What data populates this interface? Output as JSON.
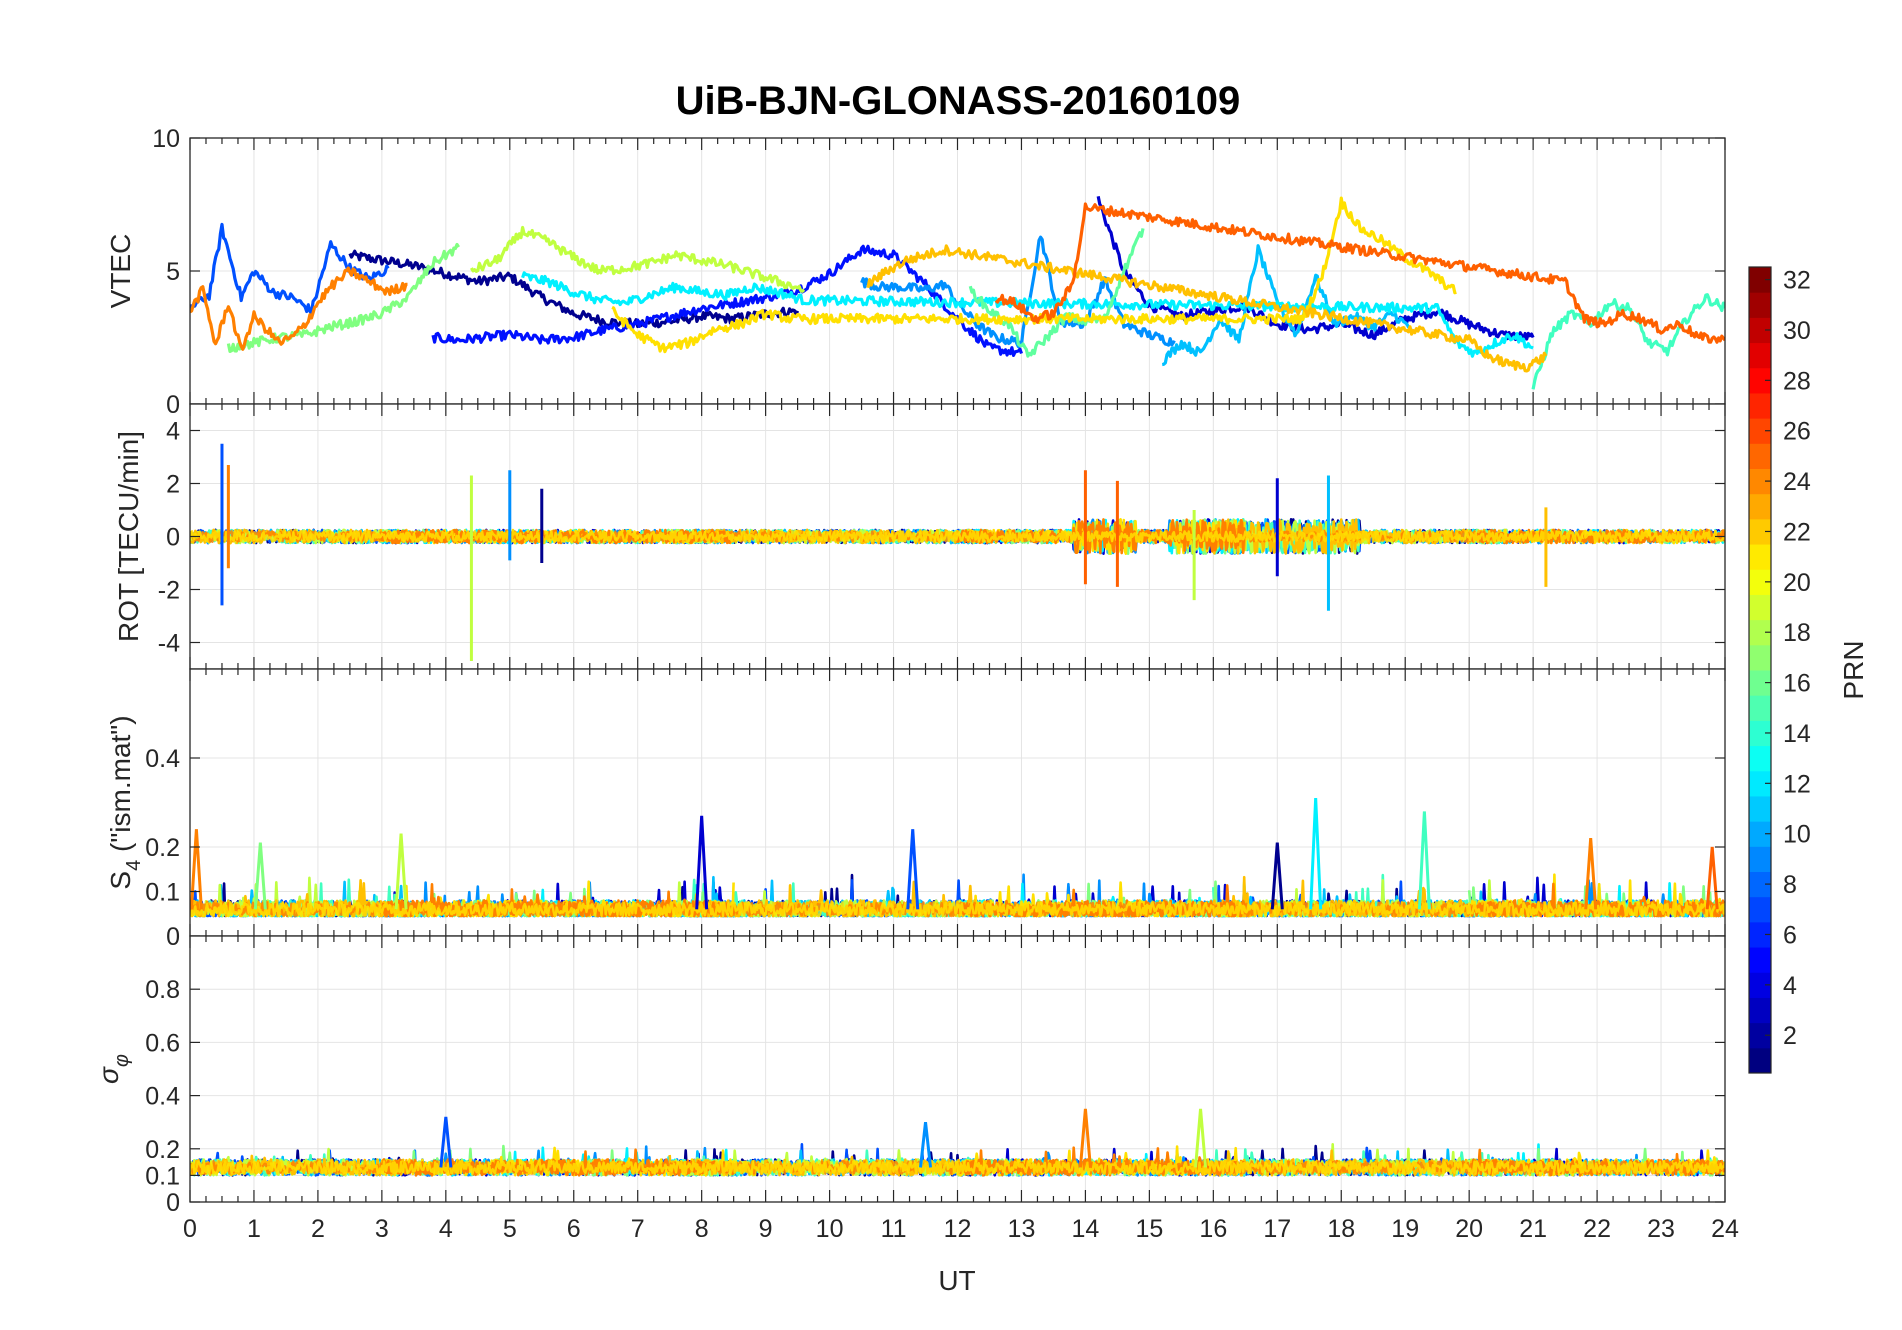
{
  "chart_data": {
    "title": "UiB-BJN-GLONASS-20160109",
    "type": "line",
    "xlabel": "UT",
    "xlim": [
      0,
      24
    ],
    "xticks": [
      0,
      1,
      2,
      3,
      4,
      5,
      6,
      7,
      8,
      9,
      10,
      11,
      12,
      13,
      14,
      15,
      16,
      17,
      18,
      19,
      20,
      21,
      22,
      23,
      24
    ],
    "colorbar": {
      "label": "PRN",
      "range": [
        1,
        32
      ],
      "ticks": [
        2,
        4,
        6,
        8,
        10,
        12,
        14,
        16,
        18,
        20,
        22,
        24,
        26,
        28,
        30,
        32
      ],
      "colormap": "jet"
    },
    "panels": [
      {
        "id": "vtec",
        "ylabel": "VTEC",
        "ylim": [
          0,
          10
        ],
        "yticks": [
          0,
          5,
          10
        ],
        "noise": 0.35,
        "base": 3.5,
        "series": [
          {
            "prn": 1,
            "color": "#00008f",
            "t": [
              2.5,
              3,
              3.5,
              4,
              4.5,
              5,
              5.5,
              6,
              6.5,
              7,
              7.5,
              8,
              8.5,
              9,
              9.5
            ],
            "v": [
              5.6,
              5.4,
              5.2,
              4.9,
              4.6,
              4.8,
              4.0,
              3.4,
              3.1,
              3.0,
              3.1,
              3.3,
              3.2,
              3.4,
              3.5
            ]
          },
          {
            "prn": 3,
            "color": "#0000cf",
            "t": [
              14.2,
              14.6,
              15,
              15.5,
              16,
              16.5,
              17,
              17.5,
              18,
              18.5,
              19,
              19.5,
              20,
              20.5,
              21
            ],
            "v": [
              7.7,
              5.0,
              3.7,
              3.3,
              3.5,
              3.7,
              3.0,
              2.8,
              3.0,
              2.6,
              3.2,
              3.5,
              3.0,
              2.6,
              2.5
            ]
          },
          {
            "prn": 5,
            "color": "#0010ff",
            "t": [
              3.8,
              4.2,
              4.6,
              5,
              5.5,
              6,
              6.5,
              7,
              7.5,
              8,
              8.5,
              9,
              9.5,
              10,
              10.5,
              11,
              11.5,
              12,
              12.5,
              13
            ],
            "v": [
              2.5,
              2.4,
              2.5,
              2.6,
              2.4,
              2.5,
              2.8,
              3.0,
              3.3,
              3.6,
              3.8,
              4.0,
              4.3,
              4.9,
              5.8,
              5.6,
              4.5,
              3.2,
              2.1,
              1.9
            ]
          },
          {
            "prn": 7,
            "color": "#0050ff",
            "t": [
              0,
              0.3,
              0.5,
              0.8,
              1,
              1.3,
              1.6,
              1.9,
              2.2,
              2.5,
              2.8,
              3.1
            ],
            "v": [
              3.6,
              4.1,
              6.6,
              4.0,
              5.0,
              4.2,
              4.0,
              3.5,
              6.0,
              5.1,
              4.7,
              5.1
            ]
          },
          {
            "prn": 9,
            "color": "#0090ff",
            "t": [
              10.5,
              10.8,
              11.1,
              11.5,
              11.8,
              12,
              12.3,
              12.6,
              13,
              13.3,
              13.6,
              14,
              14.3,
              14.6,
              15,
              15.4
            ],
            "v": [
              4.6,
              4.4,
              4.4,
              4.3,
              4.5,
              3.8,
              3.0,
              2.5,
              2.3,
              6.4,
              3.1,
              3.0,
              4.7,
              3.0,
              2.6,
              2.3
            ]
          },
          {
            "prn": 11,
            "color": "#00c0ff",
            "t": [
              15.2,
              15.5,
              15.8,
              16.1,
              16.4,
              16.7,
              17,
              17.3,
              17.6,
              17.9,
              18.2,
              18.5,
              18.8,
              19.1
            ],
            "v": [
              1.6,
              2.3,
              1.9,
              3.2,
              2.4,
              5.8,
              3.8,
              2.6,
              4.8,
              3.0,
              3.3,
              2.9,
              3.4,
              2.8
            ]
          },
          {
            "prn": 13,
            "color": "#00f0ff",
            "t": [
              5.2,
              5.6,
              6,
              6.4,
              6.8,
              7.2,
              7.6,
              8,
              8.4,
              8.8,
              9.2,
              9.6,
              19.5,
              19.8,
              20.1,
              20.4,
              20.7,
              21
            ],
            "v": [
              4.8,
              4.6,
              4.2,
              3.9,
              3.8,
              4.1,
              4.4,
              4.2,
              4.1,
              4.4,
              4.2,
              3.9,
              3.6,
              2.3,
              1.9,
              2.3,
              2.6,
              2.1
            ]
          },
          {
            "prn": 15,
            "color": "#40ffc0",
            "t": [
              21,
              21.3,
              21.6,
              21.9,
              22.2,
              22.5,
              22.8,
              23.1,
              23.4,
              23.7,
              24
            ],
            "v": [
              0.6,
              2.7,
              3.4,
              3.0,
              3.8,
              3.6,
              2.3,
              2.0,
              3.2,
              4.0,
              3.6
            ]
          },
          {
            "prn": 16,
            "color": "#60ff9f",
            "t": [
              12.2,
              12.5,
              12.8,
              13.1,
              13.4,
              13.7,
              14,
              14.3,
              14.6,
              14.9
            ],
            "v": [
              4.3,
              3.5,
              3.0,
              1.8,
              2.5,
              3.3,
              3.1,
              3.2,
              5.0,
              6.6
            ]
          },
          {
            "prn": 17,
            "color": "#80ff80",
            "t": [
              0.6,
              1,
              1.4,
              1.8,
              2.2,
              2.6,
              3,
              3.4,
              3.8,
              4.2
            ],
            "v": [
              2.1,
              2.3,
              2.5,
              2.6,
              2.9,
              3.1,
              3.4,
              4.0,
              5.3,
              5.9
            ]
          },
          {
            "prn": 19,
            "color": "#c0ff40",
            "t": [
              4.4,
              4.8,
              5.2,
              5.6,
              6,
              6.4,
              6.8,
              7.2,
              7.6,
              8,
              8.4,
              8.8,
              9.2,
              9.6
            ],
            "v": [
              5.0,
              5.4,
              6.5,
              6.1,
              5.5,
              5.0,
              5.1,
              5.3,
              5.6,
              5.4,
              5.2,
              4.9,
              4.6,
              4.3
            ]
          },
          {
            "prn": 21,
            "color": "#ffe000",
            "t": [
              6.6,
              7,
              7.4,
              7.8,
              8.2,
              8.6,
              9,
              9.4,
              17.4,
              17.7,
              18,
              18.3,
              18.6,
              19,
              19.4,
              19.8
            ],
            "v": [
              3.5,
              2.6,
              2.1,
              2.3,
              2.8,
              3.0,
              3.4,
              3.2,
              3.2,
              4.8,
              7.6,
              6.6,
              6.2,
              5.5,
              4.9,
              4.2
            ]
          },
          {
            "prn": 22,
            "color": "#ffc000",
            "t": [
              10.6,
              10.9,
              11.2,
              11.5,
              11.8,
              20,
              20.3,
              20.6,
              20.9,
              21.2
            ],
            "v": [
              4.5,
              5.0,
              5.4,
              5.6,
              5.8,
              2.4,
              1.8,
              1.5,
              1.4,
              1.8
            ]
          },
          {
            "prn": 24,
            "color": "#ff8000",
            "t": [
              0,
              0.2,
              0.4,
              0.6,
              0.8,
              1,
              1.2,
              1.4,
              1.6,
              1.8,
              2,
              2.2,
              2.5,
              2.8,
              3.1,
              3.4
            ],
            "v": [
              3.5,
              4.3,
              2.2,
              3.8,
              2.0,
              3.3,
              2.8,
              2.3,
              2.5,
              3.0,
              3.8,
              4.4,
              5.0,
              4.6,
              4.2,
              4.5
            ]
          },
          {
            "prn": 23,
            "color": "#ff6000",
            "t": [
              12.6,
              12.9,
              13.2,
              13.5,
              13.8,
              14,
              21.5,
              21.8,
              22.1,
              22.4,
              22.7,
              23,
              23.3,
              23.6,
              24
            ],
            "v": [
              4.0,
              3.8,
              3.2,
              3.4,
              4.5,
              7.4,
              4.6,
              3.2,
              3.0,
              3.4,
              3.2,
              2.8,
              3.0,
              2.5,
              2.4
            ]
          }
        ]
      },
      {
        "id": "rot",
        "ylabel": "ROT [TECU/min]",
        "ylim": [
          -5,
          5
        ],
        "yticks": [
          -4,
          -2,
          0,
          2,
          4
        ],
        "noise": 0.25,
        "base": 0,
        "events": [
          {
            "t": 0.5,
            "min": -2.6,
            "max": 3.5,
            "color": "#0050ff"
          },
          {
            "t": 0.6,
            "min": -1.2,
            "max": 2.7,
            "color": "#ff8000"
          },
          {
            "t": 4.4,
            "min": -4.7,
            "max": 2.3,
            "color": "#c0ff40"
          },
          {
            "t": 5.0,
            "min": -0.9,
            "max": 2.5,
            "color": "#0090ff"
          },
          {
            "t": 5.5,
            "min": -1.0,
            "max": 1.8,
            "color": "#00008f"
          },
          {
            "t": 14.0,
            "min": -1.8,
            "max": 2.5,
            "color": "#ff6000"
          },
          {
            "t": 14.5,
            "min": -1.9,
            "max": 2.1,
            "color": "#ff6000"
          },
          {
            "t": 15.7,
            "min": -2.4,
            "max": 1.0,
            "color": "#c0ff40"
          },
          {
            "t": 17.0,
            "min": -1.5,
            "max": 2.2,
            "color": "#0000cf"
          },
          {
            "t": 17.8,
            "min": -2.8,
            "max": 2.3,
            "color": "#00c0ff"
          },
          {
            "t": 21.2,
            "min": -1.9,
            "max": 1.1,
            "color": "#ffc000"
          }
        ]
      },
      {
        "id": "s4",
        "ylabel": "S4 (\"ism.mat\")",
        "ylabel_main": "S",
        "ylabel_sub": "4",
        "ylabel_rest": " (\"ism.mat\")",
        "ylim": [
          0,
          0.6
        ],
        "yticks": [
          0,
          0.1,
          0.2,
          0.4
        ],
        "noise": 0.02,
        "base": 0.06,
        "spikes": [
          {
            "t": 0.1,
            "v": 0.24,
            "color": "#ff8000"
          },
          {
            "t": 1.1,
            "v": 0.21,
            "color": "#80ff80"
          },
          {
            "t": 3.3,
            "v": 0.23,
            "color": "#c0ff40"
          },
          {
            "t": 8.0,
            "v": 0.27,
            "color": "#0000cf"
          },
          {
            "t": 11.3,
            "v": 0.24,
            "color": "#0050ff"
          },
          {
            "t": 17.0,
            "v": 0.21,
            "color": "#00008f"
          },
          {
            "t": 17.6,
            "v": 0.31,
            "color": "#00f0ff"
          },
          {
            "t": 19.3,
            "v": 0.28,
            "color": "#40ffc0"
          },
          {
            "t": 21.9,
            "v": 0.22,
            "color": "#ff8000"
          },
          {
            "t": 23.8,
            "v": 0.2,
            "color": "#ff6000"
          }
        ]
      },
      {
        "id": "sigma",
        "ylabel": "σφ",
        "ylabel_main": "σ",
        "ylabel_sub": "φ",
        "ylim": [
          0,
          1
        ],
        "yticks": [
          0,
          0.1,
          0.2,
          0.4,
          0.6,
          0.8
        ],
        "noise": 0.03,
        "base": 0.13,
        "spikes": [
          {
            "t": 4.0,
            "v": 0.32,
            "color": "#0050ff"
          },
          {
            "t": 11.5,
            "v": 0.3,
            "color": "#0090ff"
          },
          {
            "t": 14.0,
            "v": 0.35,
            "color": "#ff8000"
          },
          {
            "t": 15.8,
            "v": 0.35,
            "color": "#c0ff40"
          }
        ]
      }
    ]
  }
}
